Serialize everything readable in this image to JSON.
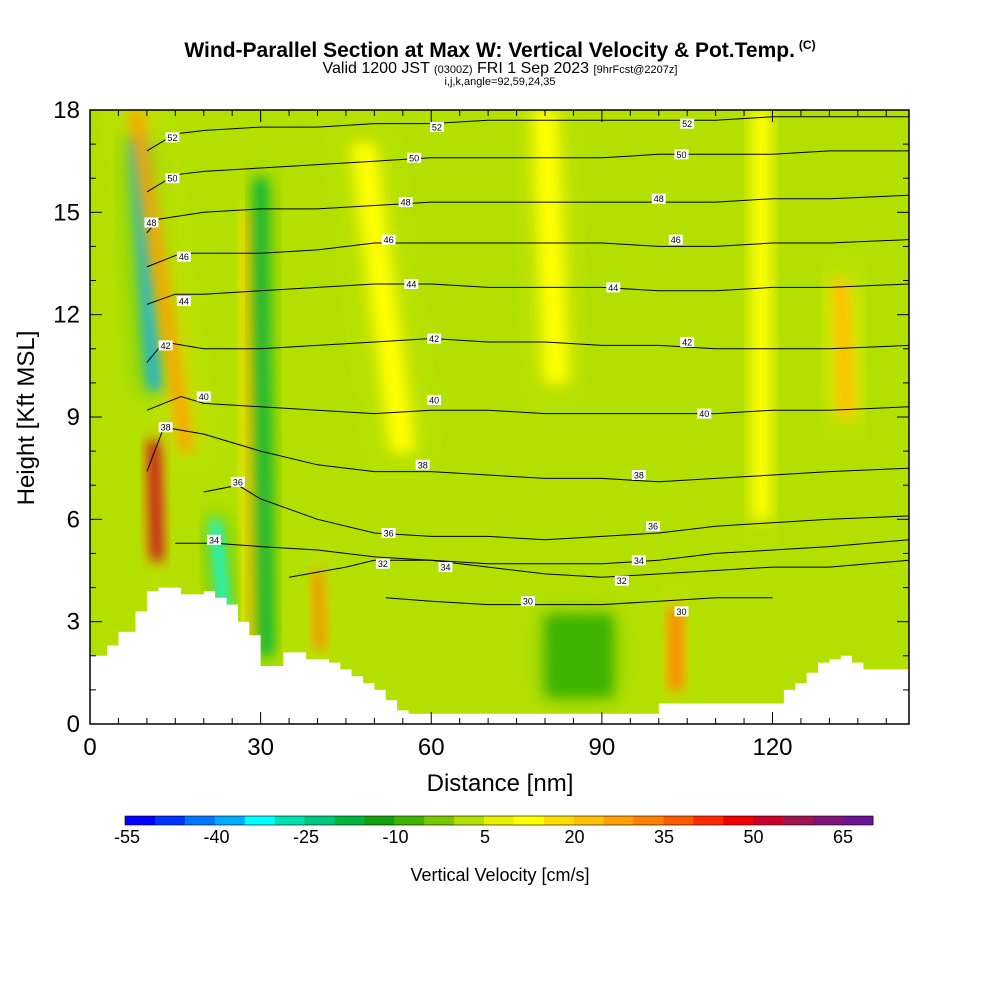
{
  "header": {
    "title": "Wind-Parallel Section at Max W: Vertical Velocity & Pot.Temp.",
    "title_units": "(C)",
    "valid_prefix": "Valid 1200 JST",
    "valid_utc": "(0300Z)",
    "valid_date": "FRI 1 Sep 2023",
    "forecast": "[9hrFcst@2207z]",
    "indices": "i,j,k,angle=92,59,24,35"
  },
  "chart_data": {
    "type": "heatmap",
    "xlabel": "Distance [nm]",
    "ylabel": "Height [Kft MSL]",
    "xlim": [
      0,
      144
    ],
    "ylim": [
      0,
      18
    ],
    "x_ticks": [
      0,
      30,
      60,
      90,
      120
    ],
    "y_ticks": [
      0,
      3,
      6,
      9,
      12,
      15,
      18
    ],
    "colorbar": {
      "label": "Vertical Velocity [cm/s]",
      "ticks": [
        "-55",
        "-40",
        "-25",
        "-10",
        "5",
        "20",
        "35",
        "50",
        "65"
      ],
      "colors": [
        "#0000ff",
        "#0033ff",
        "#0077ff",
        "#00aaff",
        "#00ffff",
        "#00e0b0",
        "#00c880",
        "#00b440",
        "#10a010",
        "#40b400",
        "#78c800",
        "#b4e000",
        "#e6f000",
        "#ffff00",
        "#ffdc00",
        "#ffc000",
        "#ffa000",
        "#ff8000",
        "#ff5a00",
        "#ff2800",
        "#f00000",
        "#c80028",
        "#a01450",
        "#821478",
        "#6a1496"
      ]
    },
    "theta_isentropes": [
      {
        "value": 30,
        "x": [
          52,
          60,
          70,
          80,
          90,
          100,
          110,
          120
        ],
        "y": [
          3.7,
          3.6,
          3.5,
          3.5,
          3.5,
          3.6,
          3.7,
          3.7
        ]
      },
      {
        "value": 32,
        "x": [
          35,
          45,
          50,
          60,
          70,
          80,
          90,
          100,
          110,
          120,
          130,
          144
        ],
        "y": [
          4.3,
          4.6,
          4.8,
          4.8,
          4.6,
          4.4,
          4.3,
          4.4,
          4.5,
          4.6,
          4.6,
          4.8
        ]
      },
      {
        "value": 34,
        "x": [
          15,
          22,
          30,
          40,
          50,
          60,
          70,
          80,
          90,
          100,
          110,
          120,
          130,
          144
        ],
        "y": [
          5.3,
          5.3,
          5.2,
          5.1,
          4.9,
          4.8,
          4.7,
          4.7,
          4.7,
          4.8,
          5.0,
          5.1,
          5.2,
          5.4
        ]
      },
      {
        "value": 36,
        "x": [
          20,
          26,
          30,
          40,
          50,
          60,
          70,
          80,
          90,
          100,
          110,
          120,
          130,
          144
        ],
        "y": [
          6.8,
          7.0,
          6.6,
          6.0,
          5.6,
          5.5,
          5.5,
          5.4,
          5.5,
          5.6,
          5.8,
          5.9,
          6.0,
          6.1
        ]
      },
      {
        "value": 38,
        "x": [
          10,
          13,
          20,
          30,
          40,
          50,
          60,
          70,
          80,
          90,
          100,
          110,
          120,
          130,
          144
        ],
        "y": [
          7.4,
          8.7,
          8.5,
          8.0,
          7.6,
          7.4,
          7.4,
          7.3,
          7.2,
          7.2,
          7.1,
          7.2,
          7.3,
          7.4,
          7.5
        ]
      },
      {
        "value": 40,
        "x": [
          10,
          16,
          20,
          30,
          40,
          50,
          60,
          70,
          80,
          90,
          100,
          110,
          120,
          130,
          144
        ],
        "y": [
          9.2,
          9.6,
          9.4,
          9.3,
          9.2,
          9.1,
          9.2,
          9.2,
          9.1,
          9.1,
          9.1,
          9.1,
          9.2,
          9.2,
          9.3
        ]
      },
      {
        "value": 42,
        "x": [
          10,
          13,
          20,
          30,
          40,
          50,
          60,
          70,
          80,
          90,
          100,
          110,
          120,
          130,
          144
        ],
        "y": [
          10.6,
          11.2,
          11.0,
          11.0,
          11.1,
          11.2,
          11.3,
          11.2,
          11.2,
          11.1,
          11.1,
          11.0,
          11.0,
          11.0,
          11.1
        ]
      },
      {
        "value": 44,
        "x": [
          10,
          15,
          20,
          30,
          40,
          50,
          60,
          70,
          80,
          90,
          100,
          110,
          120,
          130,
          144
        ],
        "y": [
          12.3,
          12.6,
          12.6,
          12.7,
          12.8,
          12.9,
          12.9,
          12.8,
          12.8,
          12.8,
          12.7,
          12.7,
          12.8,
          12.8,
          12.9
        ]
      },
      {
        "value": 46,
        "x": [
          10,
          16,
          20,
          30,
          40,
          50,
          60,
          70,
          80,
          90,
          100,
          110,
          120,
          130,
          144
        ],
        "y": [
          13.4,
          13.8,
          13.8,
          13.8,
          13.9,
          14.1,
          14.1,
          14.1,
          14.1,
          14.1,
          14.0,
          14.0,
          14.1,
          14.1,
          14.2
        ]
      },
      {
        "value": 48,
        "x": [
          10,
          12,
          20,
          30,
          40,
          50,
          60,
          70,
          80,
          90,
          100,
          110,
          120,
          130,
          144
        ],
        "y": [
          14.4,
          14.8,
          15.0,
          15.1,
          15.1,
          15.2,
          15.3,
          15.3,
          15.3,
          15.3,
          15.3,
          15.3,
          15.4,
          15.4,
          15.5
        ]
      },
      {
        "value": 50,
        "x": [
          10,
          15,
          20,
          30,
          40,
          50,
          60,
          70,
          80,
          90,
          100,
          110,
          120,
          130,
          144
        ],
        "y": [
          15.6,
          16.1,
          16.2,
          16.3,
          16.4,
          16.5,
          16.6,
          16.6,
          16.6,
          16.6,
          16.7,
          16.7,
          16.7,
          16.8,
          16.8
        ]
      },
      {
        "value": 52,
        "x": [
          10,
          15,
          20,
          30,
          40,
          50,
          60,
          70,
          80,
          90,
          100,
          110,
          120,
          130,
          144
        ],
        "y": [
          16.8,
          17.3,
          17.4,
          17.5,
          17.5,
          17.6,
          17.6,
          17.7,
          17.7,
          17.7,
          17.7,
          17.7,
          17.8,
          17.8,
          17.8
        ]
      }
    ],
    "isentrope_labels": [
      {
        "text": "52",
        "x": 14.5,
        "y": 17.2
      },
      {
        "text": "50",
        "x": 14.5,
        "y": 16.0
      },
      {
        "text": "48",
        "x": 10.8,
        "y": 14.7
      },
      {
        "text": "46",
        "x": 16.5,
        "y": 13.7
      },
      {
        "text": "44",
        "x": 16.5,
        "y": 12.4
      },
      {
        "text": "42",
        "x": 13.3,
        "y": 11.1
      },
      {
        "text": "40",
        "x": 20.0,
        "y": 9.6
      },
      {
        "text": "38",
        "x": 13.3,
        "y": 8.7
      },
      {
        "text": "36",
        "x": 26.0,
        "y": 7.1
      },
      {
        "text": "34",
        "x": 21.8,
        "y": 5.4
      },
      {
        "text": "52",
        "x": 61.0,
        "y": 17.5
      },
      {
        "text": "50",
        "x": 57.0,
        "y": 16.6
      },
      {
        "text": "48",
        "x": 55.5,
        "y": 15.3
      },
      {
        "text": "46",
        "x": 52.5,
        "y": 14.2
      },
      {
        "text": "44",
        "x": 56.5,
        "y": 12.9
      },
      {
        "text": "42",
        "x": 60.5,
        "y": 11.3
      },
      {
        "text": "40",
        "x": 60.5,
        "y": 9.5
      },
      {
        "text": "38",
        "x": 58.5,
        "y": 7.6
      },
      {
        "text": "36",
        "x": 52.5,
        "y": 5.6
      },
      {
        "text": "32",
        "x": 51.5,
        "y": 4.7
      },
      {
        "text": "34",
        "x": 62.5,
        "y": 4.6
      },
      {
        "text": "30",
        "x": 77.0,
        "y": 3.6
      },
      {
        "text": "52",
        "x": 105.0,
        "y": 17.6
      },
      {
        "text": "50",
        "x": 104.0,
        "y": 16.7
      },
      {
        "text": "48",
        "x": 100.0,
        "y": 15.4
      },
      {
        "text": "46",
        "x": 103.0,
        "y": 14.2
      },
      {
        "text": "44",
        "x": 92.0,
        "y": 12.8
      },
      {
        "text": "42",
        "x": 105.0,
        "y": 11.2
      },
      {
        "text": "40",
        "x": 108.0,
        "y": 9.1
      },
      {
        "text": "38",
        "x": 96.5,
        "y": 7.3
      },
      {
        "text": "36",
        "x": 99.0,
        "y": 5.8
      },
      {
        "text": "34",
        "x": 96.5,
        "y": 4.8
      },
      {
        "text": "32",
        "x": 93.5,
        "y": 4.2
      },
      {
        "text": "30",
        "x": 104.0,
        "y": 3.3
      }
    ],
    "terrain": {
      "x": [
        0,
        3,
        5,
        8,
        10,
        12,
        14,
        16,
        18,
        20,
        22,
        24,
        26,
        28,
        30,
        32,
        34,
        36,
        38,
        40,
        42,
        44,
        46,
        48,
        50,
        52,
        54,
        56,
        58,
        60,
        62,
        66,
        70,
        74,
        78,
        82,
        86,
        90,
        94,
        98,
        100,
        104,
        108,
        112,
        116,
        120,
        122,
        124,
        126,
        128,
        130,
        132,
        134,
        136,
        140,
        144
      ],
      "y": [
        2.0,
        2.3,
        2.7,
        3.3,
        3.9,
        4.0,
        4.0,
        3.8,
        3.8,
        3.9,
        3.7,
        3.5,
        3.0,
        2.6,
        1.7,
        1.7,
        2.1,
        2.1,
        1.9,
        1.9,
        1.8,
        1.6,
        1.4,
        1.2,
        1.0,
        0.7,
        0.4,
        0.3,
        0.3,
        0.3,
        0.3,
        0.3,
        0.3,
        0.3,
        0.3,
        0.3,
        0.3,
        0.3,
        0.3,
        0.3,
        0.6,
        0.6,
        0.6,
        0.6,
        0.6,
        0.6,
        1.0,
        1.2,
        1.5,
        1.8,
        1.9,
        2.0,
        1.8,
        1.6,
        1.6,
        1.7
      ]
    },
    "velocity_features": [
      {
        "kind": "downdraft",
        "value": -50,
        "x_bottom": 11.5,
        "y_bottom": 9.8,
        "x_top": 8.2,
        "y_top": 17.2,
        "width": 2.4
      },
      {
        "kind": "updraft",
        "value": 55,
        "x_bottom": 11.8,
        "y_bottom": 4.8,
        "x_top": 11.2,
        "y_top": 8.3,
        "width": 2.0
      },
      {
        "kind": "updraft",
        "value": 30,
        "x_bottom": 17.0,
        "y_bottom": 8.0,
        "x_top": 8.0,
        "y_top": 18.0,
        "width": 2.2
      },
      {
        "kind": "updraft",
        "value": 20,
        "x_bottom": 29.0,
        "y_bottom": 2.5,
        "x_top": 28.5,
        "y_top": 15.0,
        "width": 2.5
      },
      {
        "kind": "downdraft",
        "value": -25,
        "x_bottom": 31.0,
        "y_bottom": 2.0,
        "x_top": 30.0,
        "y_top": 16.0,
        "width": 2.2
      },
      {
        "kind": "downdraft",
        "value": -40,
        "x_bottom": 23.8,
        "y_bottom": 3.0,
        "x_top": 22.0,
        "y_top": 6.0,
        "width": 1.8
      },
      {
        "kind": "updraft",
        "value": 35,
        "x_bottom": 40.5,
        "y_bottom": 2.2,
        "x_top": 40.0,
        "y_top": 4.5,
        "width": 1.6
      },
      {
        "kind": "updraft",
        "value": 35,
        "x_bottom": 103.0,
        "y_bottom": 1.0,
        "x_top": 103.0,
        "y_top": 3.4,
        "width": 2.4
      },
      {
        "kind": "updraft",
        "value": 20,
        "x_bottom": 133.0,
        "y_bottom": 9.0,
        "x_top": 132.0,
        "y_top": 13.0,
        "width": 3.0
      },
      {
        "kind": "downdraft",
        "value": -10,
        "x_bottom": 86.0,
        "y_bottom": 0.8,
        "x_top": 86.0,
        "y_top": 3.2,
        "width": 12.0
      },
      {
        "kind": "updraft",
        "value": 10,
        "x_bottom": 55.0,
        "y_bottom": 8.0,
        "x_top": 48.0,
        "y_top": 17.0,
        "width": 4.0
      },
      {
        "kind": "updraft",
        "value": 10,
        "x_bottom": 82.0,
        "y_bottom": 10.0,
        "x_top": 80.0,
        "y_top": 18.0,
        "width": 4.0
      },
      {
        "kind": "updraft",
        "value": 10,
        "x_bottom": 118.0,
        "y_bottom": 6.0,
        "x_top": 118.0,
        "y_top": 18.0,
        "width": 3.0
      }
    ]
  }
}
